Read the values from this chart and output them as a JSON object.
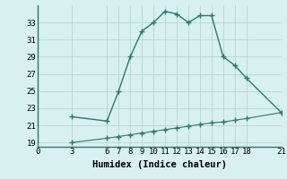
{
  "xlabel": "Humidex (Indice chaleur)",
  "upper_x": [
    3,
    6,
    7,
    8,
    9,
    10,
    11,
    12,
    13,
    14,
    15,
    16,
    17,
    18,
    21
  ],
  "upper_y": [
    22.0,
    21.5,
    25.0,
    29.0,
    32.0,
    33.0,
    34.3,
    34.0,
    33.0,
    33.8,
    33.8,
    29.0,
    28.0,
    26.5,
    22.5
  ],
  "lower_x": [
    3,
    6,
    7,
    8,
    9,
    10,
    11,
    12,
    13,
    14,
    15,
    16,
    17,
    18,
    21
  ],
  "lower_y": [
    19.0,
    19.5,
    19.7,
    19.9,
    20.1,
    20.3,
    20.5,
    20.7,
    20.9,
    21.1,
    21.3,
    21.4,
    21.6,
    21.8,
    22.5
  ],
  "line_color": "#2a7a6a",
  "bg_color": "#d8f0f0",
  "grid_color": "#b8d8d0",
  "xlim": [
    0,
    21
  ],
  "ylim": [
    18.5,
    35.0
  ],
  "xticks": [
    0,
    3,
    6,
    7,
    8,
    9,
    10,
    11,
    12,
    13,
    14,
    15,
    16,
    17,
    18,
    21
  ],
  "yticks": [
    19,
    21,
    23,
    25,
    27,
    29,
    31,
    33
  ],
  "tick_fontsize": 6.5,
  "label_fontsize": 7.5
}
